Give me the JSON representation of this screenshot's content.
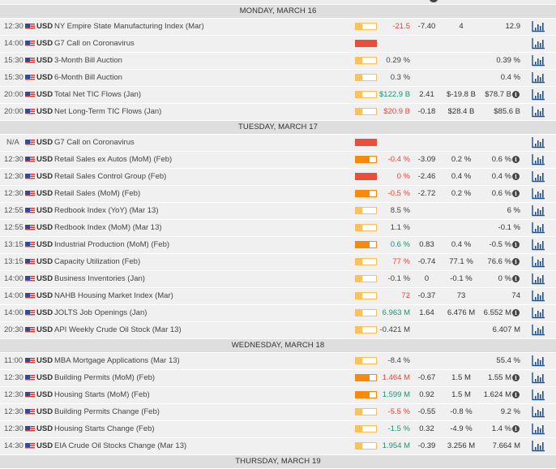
{
  "colors": {
    "impact_low": "#fcc25b",
    "impact_medium": "#f58a0c",
    "impact_high": "#e84e3a",
    "worse_than_expected": "#e8453c",
    "better_than_expected": "#1a9474",
    "chart_icon": "#1d4f8c"
  },
  "days": [
    {
      "label": "MONDAY, MARCH 16",
      "events": [
        {
          "time": "12:30",
          "currency": "USD",
          "flag": "us-flag-icon",
          "name": "NY Empire State Manufacturing Index (Mar)",
          "impact": "low",
          "actual": "-21.5",
          "actual_tone": "red",
          "deviation": "-7.40",
          "consensus": "4",
          "previous": "12.9",
          "info": false
        },
        {
          "time": "14:00",
          "currency": "USD",
          "flag": "us-flag-icon",
          "name": "G7 Call on Coronavirus",
          "impact": "high",
          "actual": "",
          "actual_tone": "neutral",
          "deviation": "",
          "consensus": "",
          "previous": "",
          "info": false
        },
        {
          "time": "15:30",
          "currency": "USD",
          "flag": "us-flag-icon",
          "name": "3-Month Bill Auction",
          "impact": "low",
          "actual": "0.29 %",
          "actual_tone": "neutral",
          "deviation": "",
          "consensus": "",
          "previous": "0.39 %",
          "info": false
        },
        {
          "time": "15:30",
          "currency": "USD",
          "flag": "us-flag-icon",
          "name": "6-Month Bill Auction",
          "impact": "low",
          "actual": "0.3 %",
          "actual_tone": "neutral",
          "deviation": "",
          "consensus": "",
          "previous": "0.4 %",
          "info": false
        },
        {
          "time": "20:00",
          "currency": "USD",
          "flag": "us-flag-icon",
          "name": "Total Net TIC Flows (Jan)",
          "impact": "low",
          "actual": "$122.9 B",
          "actual_tone": "green",
          "deviation": "2.41",
          "consensus": "$-19.8 B",
          "previous": "$78.7 B",
          "info": true
        },
        {
          "time": "20:00",
          "currency": "USD",
          "flag": "us-flag-icon",
          "name": "Net Long-Term TIC Flows (Jan)",
          "impact": "low",
          "actual": "$20.9 B",
          "actual_tone": "red",
          "deviation": "-0.18",
          "consensus": "$28.4 B",
          "previous": "$85.6 B",
          "info": false
        }
      ]
    },
    {
      "label": "TUESDAY, MARCH 17",
      "events": [
        {
          "time": "N/A",
          "currency": "USD",
          "flag": "us-flag-icon",
          "name": "G7 Call on Coronavirus",
          "impact": "high",
          "actual": "",
          "actual_tone": "neutral",
          "deviation": "",
          "consensus": "",
          "previous": "",
          "info": false
        },
        {
          "time": "12:30",
          "currency": "USD",
          "flag": "us-flag-icon",
          "name": "Retail Sales ex Autos (MoM) (Feb)",
          "impact": "medium",
          "actual": "-0.4 %",
          "actual_tone": "red",
          "deviation": "-3.09",
          "consensus": "0.2 %",
          "previous": "0.6 %",
          "info": true
        },
        {
          "time": "12:30",
          "currency": "USD",
          "flag": "us-flag-icon",
          "name": "Retail Sales Control Group (Feb)",
          "impact": "high",
          "actual": "0 %",
          "actual_tone": "red",
          "deviation": "-2.46",
          "consensus": "0.4 %",
          "previous": "0.4 %",
          "info": true
        },
        {
          "time": "12:30",
          "currency": "USD",
          "flag": "us-flag-icon",
          "name": "Retail Sales (MoM) (Feb)",
          "impact": "medium",
          "actual": "-0.5 %",
          "actual_tone": "red",
          "deviation": "-2.72",
          "consensus": "0.2 %",
          "previous": "0.6 %",
          "info": true
        },
        {
          "time": "12:55",
          "currency": "USD",
          "flag": "us-flag-icon",
          "name": "Redbook Index (YoY) (Mar 13)",
          "impact": "low",
          "actual": "8.5 %",
          "actual_tone": "neutral",
          "deviation": "",
          "consensus": "",
          "previous": "6 %",
          "info": false
        },
        {
          "time": "12:55",
          "currency": "USD",
          "flag": "us-flag-icon",
          "name": "Redbook Index (MoM) (Mar 13)",
          "impact": "low",
          "actual": "1.1 %",
          "actual_tone": "neutral",
          "deviation": "",
          "consensus": "",
          "previous": "-0.1 %",
          "info": false
        },
        {
          "time": "13:15",
          "currency": "USD",
          "flag": "us-flag-icon",
          "name": "Industrial Production (MoM) (Feb)",
          "impact": "medium",
          "actual": "0.6 %",
          "actual_tone": "green",
          "deviation": "0.83",
          "consensus": "0.4 %",
          "previous": "-0.5 %",
          "info": true
        },
        {
          "time": "13:15",
          "currency": "USD",
          "flag": "us-flag-icon",
          "name": "Capacity Utilization (Feb)",
          "impact": "low",
          "actual": "77 %",
          "actual_tone": "red",
          "deviation": "-0.74",
          "consensus": "77.1 %",
          "previous": "76.6 %",
          "info": true
        },
        {
          "time": "14:00",
          "currency": "USD",
          "flag": "us-flag-icon",
          "name": "Business Inventories (Jan)",
          "impact": "low",
          "actual": "-0.1 %",
          "actual_tone": "neutral",
          "deviation": "0",
          "consensus": "-0.1 %",
          "previous": "0 %",
          "info": true
        },
        {
          "time": "14:00",
          "currency": "USD",
          "flag": "us-flag-icon",
          "name": "NAHB Housing Market Index (Mar)",
          "impact": "low",
          "actual": "72",
          "actual_tone": "red",
          "deviation": "-0.37",
          "consensus": "73",
          "previous": "74",
          "info": false
        },
        {
          "time": "14:00",
          "currency": "USD",
          "flag": "us-flag-icon",
          "name": "JOLTS Job Openings (Jan)",
          "impact": "low",
          "actual": "6.963 M",
          "actual_tone": "green",
          "deviation": "1.64",
          "consensus": "6.476 M",
          "previous": "6.552 M",
          "info": true
        },
        {
          "time": "20:30",
          "currency": "USD",
          "flag": "us-flag-icon",
          "name": "API Weekly Crude Oil Stock (Mar 13)",
          "impact": "low",
          "actual": "-0.421 M",
          "actual_tone": "neutral",
          "deviation": "",
          "consensus": "",
          "previous": "6.407 M",
          "info": false
        }
      ]
    },
    {
      "label": "WEDNESDAY, MARCH 18",
      "events": [
        {
          "time": "11:00",
          "currency": "USD",
          "flag": "us-flag-icon",
          "name": "MBA Mortgage Applications (Mar 13)",
          "impact": "low",
          "actual": "-8.4 %",
          "actual_tone": "neutral",
          "deviation": "",
          "consensus": "",
          "previous": "55.4 %",
          "info": false
        },
        {
          "time": "12:30",
          "currency": "USD",
          "flag": "us-flag-icon",
          "name": "Building Permits (MoM) (Feb)",
          "impact": "medium",
          "actual": "1.464 M",
          "actual_tone": "red",
          "deviation": "-0.67",
          "consensus": "1.5 M",
          "previous": "1.55 M",
          "info": true
        },
        {
          "time": "12:30",
          "currency": "USD",
          "flag": "us-flag-icon",
          "name": "Housing Starts (MoM) (Feb)",
          "impact": "medium",
          "actual": "1.599 M",
          "actual_tone": "green",
          "deviation": "0.92",
          "consensus": "1.5 M",
          "previous": "1.624 M",
          "info": true
        },
        {
          "time": "12:30",
          "currency": "USD",
          "flag": "us-flag-icon",
          "name": "Building Permits Change (Feb)",
          "impact": "low",
          "actual": "-5.5 %",
          "actual_tone": "red",
          "deviation": "-0.55",
          "consensus": "-0.8 %",
          "previous": "9.2 %",
          "info": false
        },
        {
          "time": "12:30",
          "currency": "USD",
          "flag": "us-flag-icon",
          "name": "Housing Starts Change (Feb)",
          "impact": "low",
          "actual": "-1.5 %",
          "actual_tone": "green",
          "deviation": "0.32",
          "consensus": "-4.9 %",
          "previous": "1.4 %",
          "info": true
        },
        {
          "time": "14:30",
          "currency": "USD",
          "flag": "us-flag-icon",
          "name": "EIA Crude Oil Stocks Change (Mar 13)",
          "impact": "low",
          "actual": "1.954 M",
          "actual_tone": "green",
          "deviation": "-0.39",
          "consensus": "3.256 M",
          "previous": "7.664 M",
          "info": false
        }
      ]
    },
    {
      "label": "THURSDAY, MARCH 19",
      "events": []
    }
  ],
  "icons": {
    "info": "i",
    "chart": "bar-chart-icon",
    "flag": "us-flag-icon"
  }
}
